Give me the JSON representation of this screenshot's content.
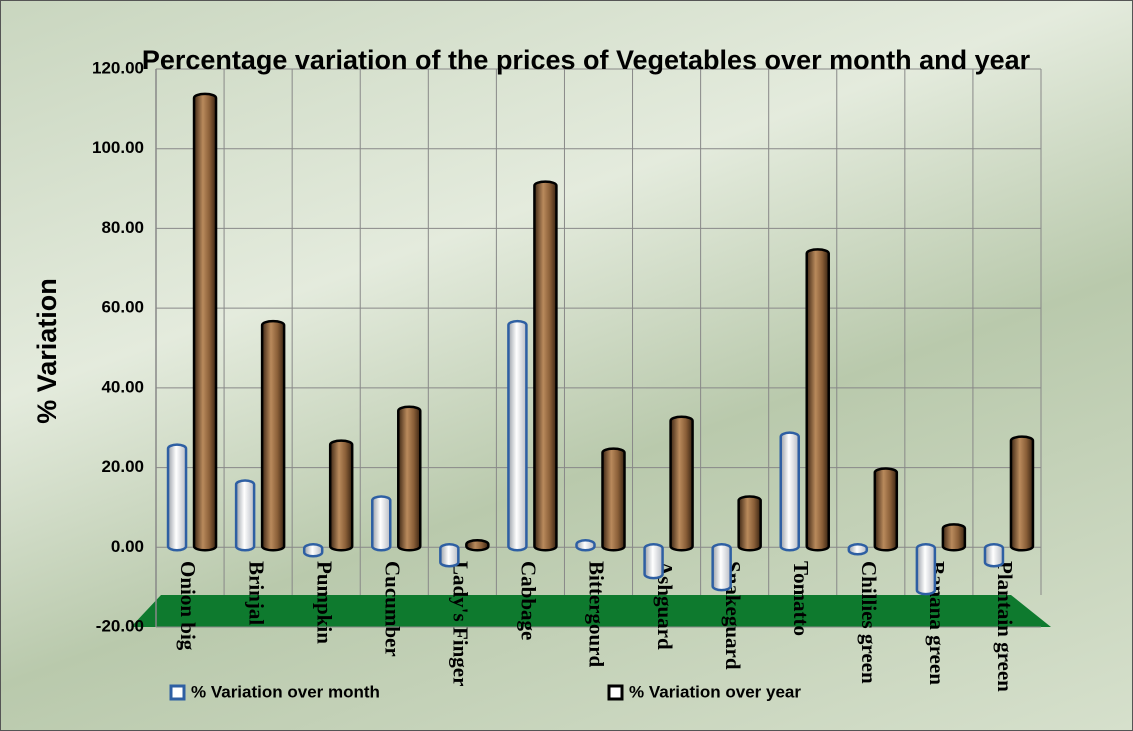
{
  "chart_data": {
    "type": "bar",
    "title": "Percentage variation of the prices of Vegetables over month and year",
    "y_label": "% Variation",
    "categories": [
      "Onion big",
      "Brinjal",
      "Pumpkin",
      "Cucumber",
      "Lady's Finger",
      "Cabbage",
      "Bittergourd",
      "Ashguard",
      "Snakeguard",
      "Tomatto",
      "Chillies green",
      "Banana green",
      "Plantain green"
    ],
    "series": [
      {
        "name": "% Variation over month",
        "color": "#2e5fa3",
        "values": [
          25,
          16,
          -1.5,
          12,
          -4,
          56,
          1,
          -7,
          -10,
          28,
          -1,
          -11,
          -4
        ]
      },
      {
        "name": "% Variation over year",
        "color": "#7a5230",
        "values": [
          113,
          56,
          26,
          34.5,
          1,
          91,
          24,
          32,
          12,
          74,
          19,
          5,
          27
        ]
      }
    ],
    "ylim": [
      -20,
      120
    ],
    "yticks": [
      {
        "value": -20,
        "label": "-20.00"
      },
      {
        "value": 0,
        "label": "0.00"
      },
      {
        "value": 20,
        "label": "20.00"
      },
      {
        "value": 40,
        "label": "40.00"
      },
      {
        "value": 60,
        "label": "60.00"
      },
      {
        "value": 80,
        "label": "80.00"
      },
      {
        "value": 100,
        "label": "100.00"
      },
      {
        "value": 120,
        "label": "120.00"
      }
    ],
    "grid": true
  }
}
